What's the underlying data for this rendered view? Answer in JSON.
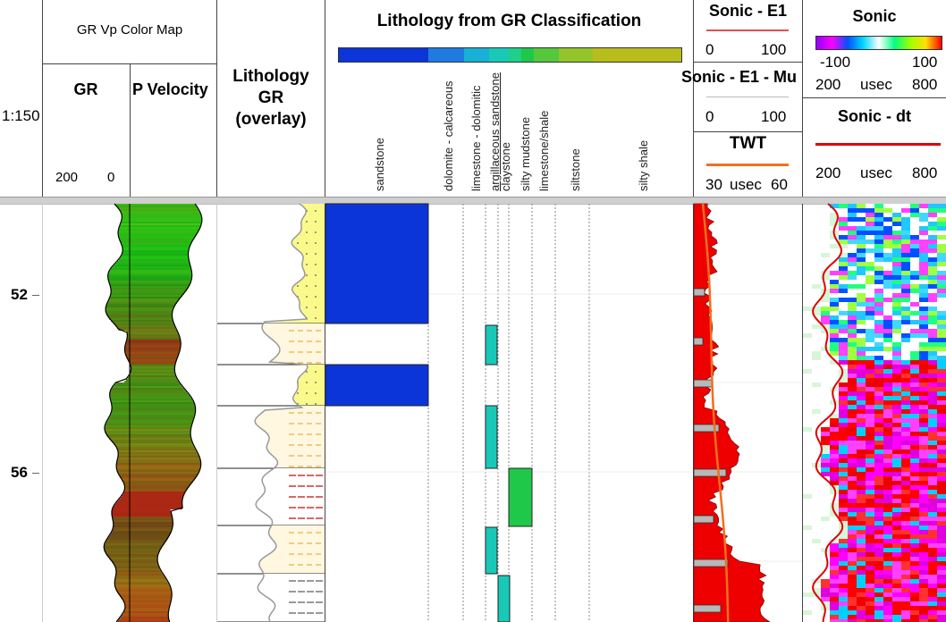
{
  "depth_track": {
    "scale": "1:150",
    "depth_labels": [
      "52",
      "56"
    ]
  },
  "gr_vp_track": {
    "title": "GR Vp Color Map",
    "gr_label": "GR",
    "gr_scale_left": "200",
    "gr_scale_right": "0",
    "pvel_label": "P Velocity"
  },
  "lithology_overlay": {
    "title_line1": "Lithology",
    "title_line2": "GR",
    "title_line3": "(overlay)"
  },
  "lithology_classification": {
    "title": "Lithology from GR Classification",
    "classes": [
      "sandstone",
      "dolomite - calcareous",
      "limestone - dolomitic",
      "argillaceous sandstone",
      "claystone",
      "silty mudstone",
      "limestone/shale",
      "siltstone",
      "silty shale"
    ],
    "colors": [
      "#0b35d8",
      "#1f7be0",
      "#18b0d6",
      "#18c9b8",
      "#1fcf8a",
      "#20c84a",
      "#55c83c",
      "#92c52a",
      "#b8bd1c"
    ]
  },
  "sonic_track": {
    "title_e1": "Sonic - E1",
    "e1_left": "0",
    "e1_right": "100",
    "title_mu": "Sonic - E1 - Mu",
    "mu_left": "0",
    "mu_right": "100",
    "twt_title": "TWT",
    "twt_left": "30",
    "twt_unit": "usec",
    "twt_right": "60",
    "colors": {
      "e1": "#e00000",
      "mu": "#b0b0b0",
      "twt": "#f07020"
    }
  },
  "sonic_color_track": {
    "title": "Sonic",
    "scale_left": "-100",
    "scale_right": "100",
    "range_left": "200",
    "range_unit": "usec",
    "range_right": "800",
    "dt_title": "Sonic - dt",
    "dt_left": "200",
    "dt_unit": "usec",
    "dt_right": "800",
    "dt_color": "#e00000"
  }
}
